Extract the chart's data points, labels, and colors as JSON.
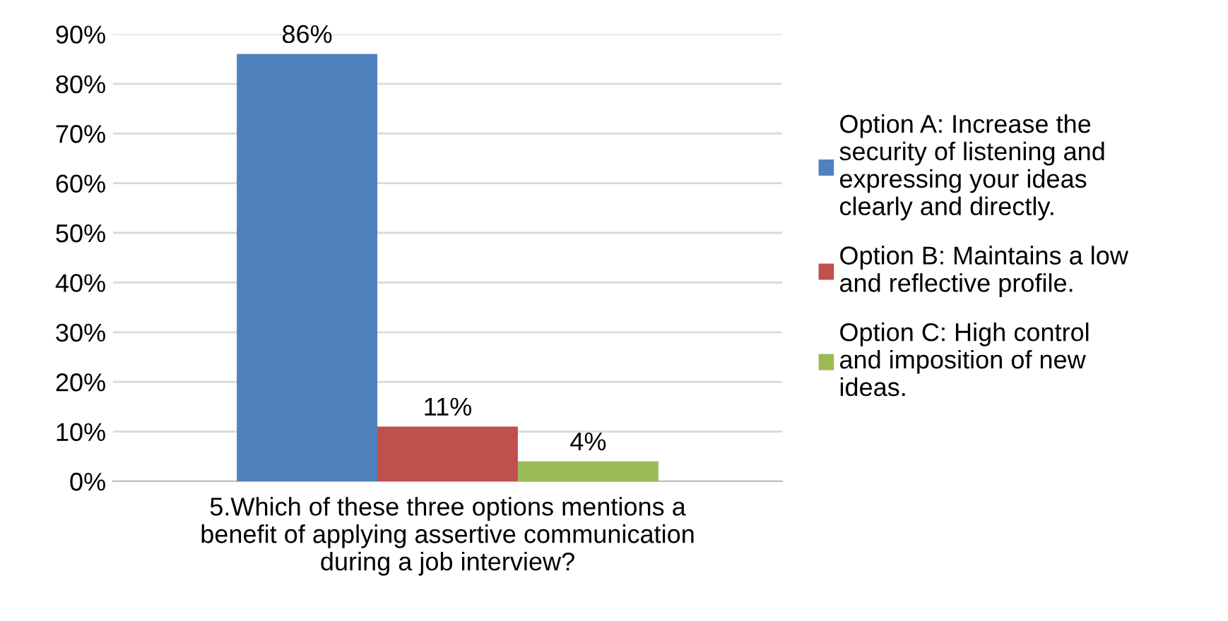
{
  "chart_data": {
    "type": "bar",
    "categories": [
      "5.Which of these three options mentions a\nbenefit of applying assertive communication\nduring a job interview?"
    ],
    "series": [
      {
        "name": "Option A: Increase the\nsecurity of listening and\nexpressing your ideas\nclearly and directly.",
        "color": "#4f81bd",
        "values": [
          86
        ],
        "value_labels": [
          "86%"
        ]
      },
      {
        "name": "Option B: Maintains a low\nand reflective profile.",
        "color": "#c0504d",
        "values": [
          11
        ],
        "value_labels": [
          "11%"
        ]
      },
      {
        "name": "Option C: High control\nand imposition of new\nideas.",
        "color": "#9bbb59",
        "values": [
          4
        ],
        "value_labels": [
          "4%"
        ]
      }
    ],
    "ylim": [
      0,
      90
    ],
    "yticks": [
      {
        "value": 0,
        "label": "0%"
      },
      {
        "value": 10,
        "label": "10%"
      },
      {
        "value": 20,
        "label": "20%"
      },
      {
        "value": 30,
        "label": "30%"
      },
      {
        "value": 40,
        "label": "40%"
      },
      {
        "value": 50,
        "label": "50%"
      },
      {
        "value": 60,
        "label": "60%"
      },
      {
        "value": 70,
        "label": "70%"
      },
      {
        "value": 80,
        "label": "80%"
      },
      {
        "value": 90,
        "label": "90%"
      }
    ],
    "grid": "y",
    "legend": "right"
  }
}
